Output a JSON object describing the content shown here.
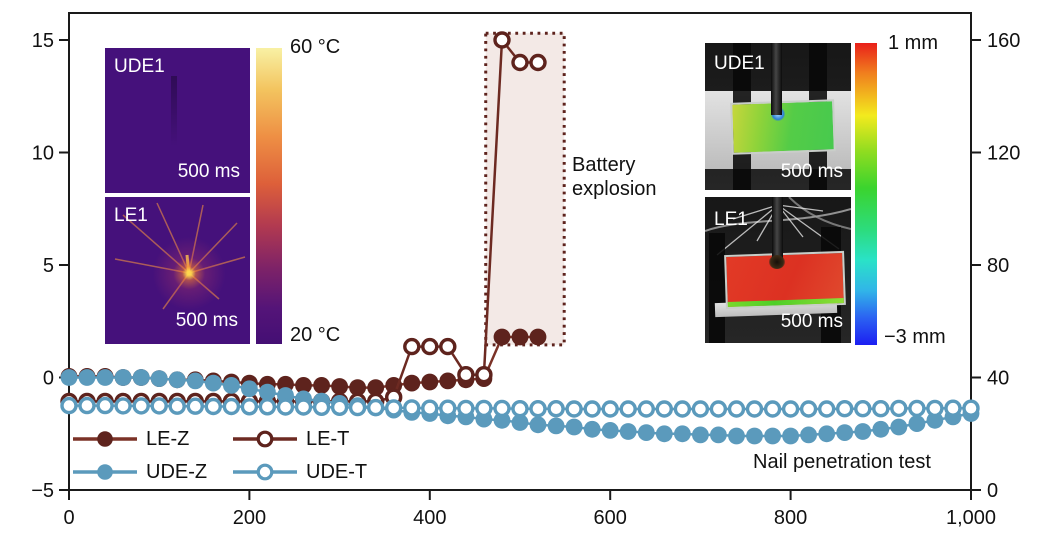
{
  "figure": {
    "note": "Nail penetration test",
    "annotation": "Battery\nexplosion"
  },
  "insets": {
    "thermal_top": {
      "title": "UDE1",
      "timestamp": "500 ms"
    },
    "thermal_bottom": {
      "title": "LE1",
      "timestamp": "500 ms"
    },
    "thermal_colorbar": {
      "max": "60 °C",
      "min": "20 °C"
    },
    "photo_top": {
      "title": "UDE1",
      "timestamp": "500 ms"
    },
    "photo_bottom": {
      "title": "LE1",
      "timestamp": "500 ms"
    },
    "dic_colorbar": {
      "max": "1 mm",
      "min": "−3 mm"
    }
  },
  "colors": {
    "maroon": "#5e231d",
    "maroon_line": "#7b3227",
    "blue": "#5b9abc",
    "explosion_fill": "#f3e9e6"
  },
  "chart_data": {
    "type": "scatter",
    "title": "",
    "xlabel": "",
    "ylabel_left": "",
    "ylabel_right": "",
    "x_range": [
      0,
      1000
    ],
    "x_ticks": {
      "values": [
        0,
        200,
        400,
        600,
        800,
        1000
      ],
      "labels": [
        "0",
        "200",
        "400",
        "600",
        "800",
        "1,000"
      ]
    },
    "y_left": {
      "range": [
        -5,
        15
      ],
      "ticks": {
        "values": [
          15,
          10,
          5,
          0,
          -5
        ],
        "labels": [
          "15",
          "10",
          "5",
          "0",
          "−5"
        ]
      }
    },
    "y_right": {
      "range": [
        0,
        160
      ],
      "ticks": {
        "values": [
          160,
          120,
          80,
          40,
          0
        ],
        "labels": [
          "160",
          "120",
          "80",
          "40",
          "0"
        ]
      }
    },
    "explosion_region": {
      "x0": 462,
      "x1": 549,
      "y0": 1.45,
      "y1": 15.3,
      "fill": "#f3e9e6",
      "border": "#5e231d",
      "label": "Battery explosion"
    },
    "series": [
      {
        "name": "LE-Z",
        "axis": "left",
        "marker": "filled",
        "color": "#5e231d",
        "line_color": "#7b3227",
        "x": [
          0,
          20,
          40,
          60,
          80,
          100,
          120,
          140,
          160,
          180,
          200,
          220,
          240,
          260,
          280,
          300,
          320,
          340,
          360,
          380,
          400,
          420,
          440,
          460,
          480,
          500,
          520
        ],
        "y": [
          0.05,
          0.05,
          0.05,
          0,
          0,
          -0.05,
          -0.1,
          -0.1,
          -0.15,
          -0.2,
          -0.25,
          -0.3,
          -0.3,
          -0.35,
          -0.35,
          -0.4,
          -0.45,
          -0.45,
          -0.35,
          -0.25,
          -0.2,
          -0.15,
          -0.1,
          -0.05,
          1.8,
          1.8,
          1.8
        ]
      },
      {
        "name": "LE-T",
        "axis": "right",
        "marker": "open",
        "color": "#5e231d",
        "line_color": "#6d2a22",
        "x": [
          0,
          20,
          40,
          60,
          80,
          100,
          120,
          140,
          160,
          180,
          200,
          220,
          240,
          260,
          280,
          300,
          320,
          340,
          360,
          380,
          400,
          420,
          440,
          460,
          480,
          500,
          520
        ],
        "y": [
          31.5,
          31.5,
          31.5,
          31.5,
          31.5,
          31.5,
          31.5,
          31.5,
          31.5,
          31.5,
          31.5,
          31.5,
          31.5,
          31.5,
          31.5,
          31.5,
          31.5,
          31.5,
          33,
          51,
          51,
          51,
          41,
          41,
          160,
          152,
          152
        ]
      },
      {
        "name": "UDE-Z",
        "axis": "left",
        "marker": "filled",
        "color": "#5b9abc",
        "line_color": "#5b9abc",
        "x": [
          0,
          20,
          40,
          60,
          80,
          100,
          120,
          140,
          160,
          180,
          200,
          220,
          240,
          260,
          280,
          300,
          320,
          340,
          360,
          380,
          400,
          420,
          440,
          460,
          480,
          500,
          520,
          540,
          560,
          580,
          600,
          620,
          640,
          660,
          680,
          700,
          720,
          740,
          760,
          780,
          800,
          820,
          840,
          860,
          880,
          900,
          920,
          940,
          960,
          980,
          1000
        ],
        "y": [
          0,
          0,
          0,
          0,
          0,
          -0.05,
          -0.1,
          -0.15,
          -0.25,
          -0.35,
          -0.5,
          -0.65,
          -0.8,
          -0.95,
          -1.05,
          -1.15,
          -1.25,
          -1.35,
          -1.45,
          -1.55,
          -1.6,
          -1.7,
          -1.75,
          -1.85,
          -1.9,
          -2,
          -2.1,
          -2.15,
          -2.2,
          -2.3,
          -2.35,
          -2.4,
          -2.45,
          -2.5,
          -2.5,
          -2.55,
          -2.55,
          -2.6,
          -2.6,
          -2.6,
          -2.6,
          -2.55,
          -2.5,
          -2.45,
          -2.4,
          -2.3,
          -2.2,
          -2.05,
          -1.9,
          -1.75,
          -1.6
        ]
      },
      {
        "name": "UDE-T",
        "axis": "right",
        "marker": "open",
        "color": "#5b9abc",
        "line_color": "#5b9abc",
        "x": [
          0,
          20,
          40,
          60,
          80,
          100,
          120,
          140,
          160,
          180,
          200,
          220,
          240,
          260,
          280,
          300,
          320,
          340,
          360,
          380,
          400,
          420,
          440,
          460,
          480,
          500,
          520,
          540,
          560,
          580,
          600,
          620,
          640,
          660,
          680,
          700,
          720,
          740,
          760,
          780,
          800,
          820,
          840,
          860,
          880,
          900,
          920,
          940,
          960,
          980,
          1000
        ],
        "y": [
          30,
          30,
          30,
          29.9,
          29.9,
          29.9,
          29.8,
          29.8,
          29.7,
          29.7,
          29.6,
          29.6,
          29.5,
          29.5,
          29.4,
          29.4,
          29.3,
          29.3,
          29.2,
          29.2,
          29.1,
          29.1,
          29,
          29,
          29,
          28.9,
          28.9,
          28.9,
          28.8,
          28.8,
          28.8,
          28.8,
          28.8,
          28.8,
          28.8,
          28.8,
          28.8,
          28.8,
          28.8,
          28.8,
          28.8,
          28.8,
          28.8,
          28.9,
          28.9,
          28.9,
          29,
          29,
          29,
          29.1,
          29.1
        ]
      }
    ]
  }
}
